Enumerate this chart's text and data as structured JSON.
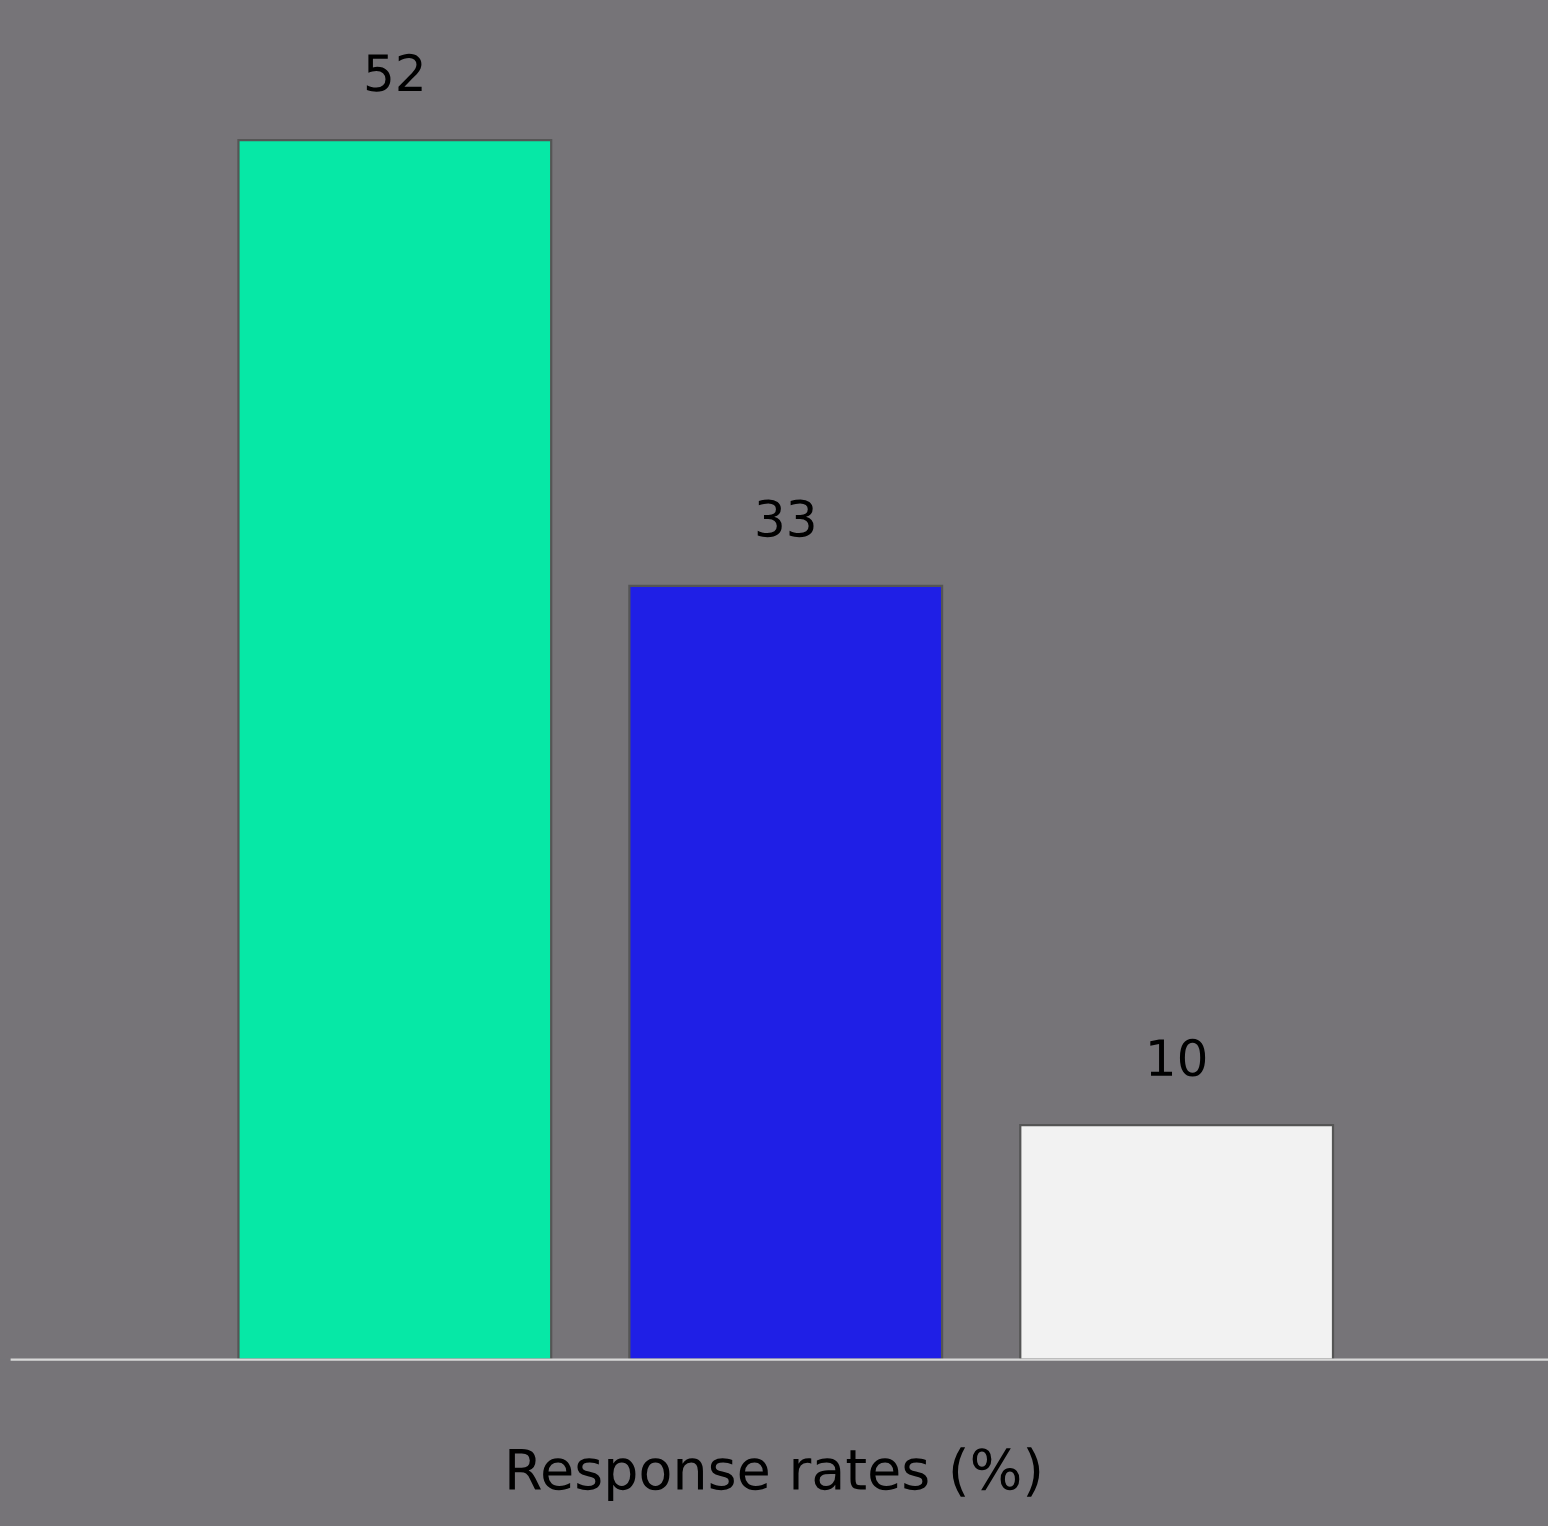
{
  "chart_data": {
    "type": "bar",
    "xlabel": "Response rates (%)",
    "categories": [
      null,
      null,
      null
    ],
    "values": [
      52,
      33,
      10
    ],
    "colors": [
      "#06e8a6",
      "#1f1fe6",
      "#f2f2f2"
    ],
    "data_labels": true,
    "grid": false,
    "legend": false
  }
}
